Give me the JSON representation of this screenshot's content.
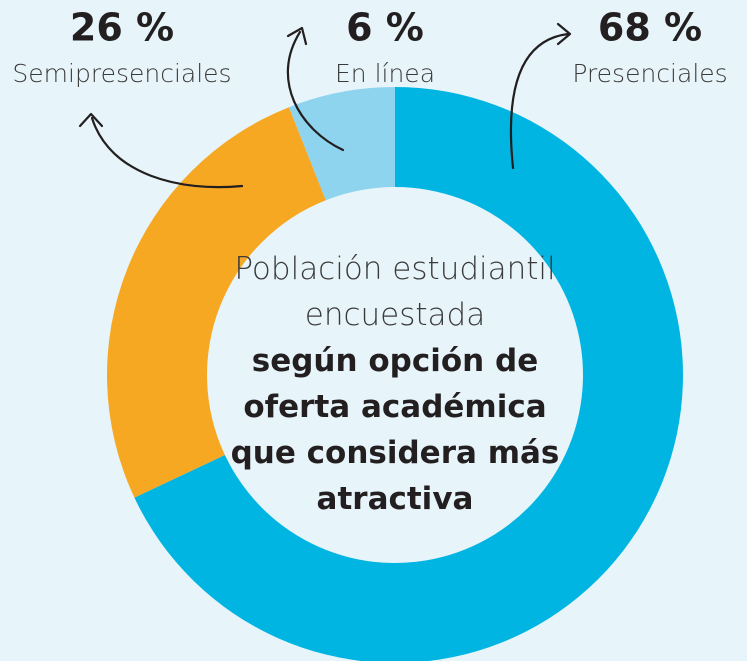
{
  "chart_data": {
    "type": "donut",
    "title": "Población estudiantil encuestada",
    "subtitle": "según opción de oferta académica que considera más atractiva",
    "categories": [
      "Presenciales",
      "Semipresenciales",
      "En línea"
    ],
    "values": [
      68,
      26,
      6
    ],
    "value_labels": [
      "68 %",
      "26 %",
      "6 %"
    ],
    "colors": [
      "#00b5e2",
      "#f7a823",
      "#8fd4ee"
    ]
  }
}
